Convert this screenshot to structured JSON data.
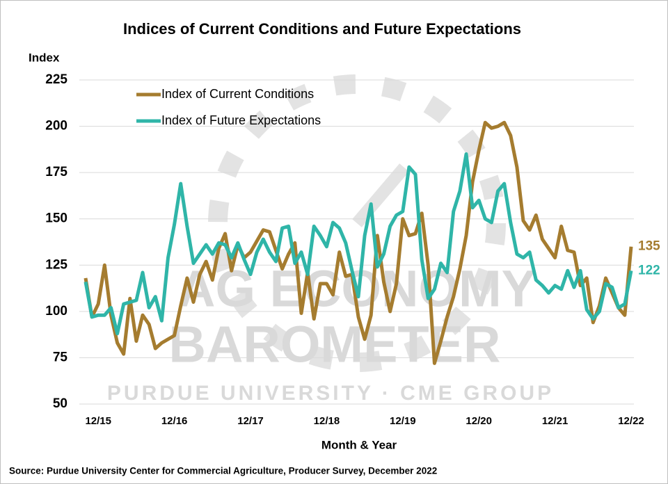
{
  "chart_data": {
    "type": "line",
    "title": "Indices of Current Conditions and Future Expectations",
    "y_label": "Index",
    "x_label": "Month & Year",
    "source": "Source: Purdue University Center for Commercial Agriculture, Producer Survey, December 2022",
    "watermark": [
      "AG ECONOMY",
      "BAROMETER",
      "PURDUE UNIVERSITY  ·  CME GROUP"
    ],
    "legend": "upper left",
    "grid": true,
    "ylim": [
      50,
      225
    ],
    "yticks": [
      50,
      75,
      100,
      125,
      150,
      175,
      200,
      225
    ],
    "categories": [
      null,
      null,
      "12/15",
      null,
      null,
      null,
      null,
      null,
      null,
      null,
      null,
      null,
      null,
      null,
      "12/16",
      null,
      null,
      null,
      null,
      null,
      null,
      null,
      null,
      null,
      null,
      null,
      "12/17",
      null,
      null,
      null,
      null,
      null,
      null,
      null,
      null,
      null,
      null,
      null,
      "12/18",
      null,
      null,
      null,
      null,
      null,
      null,
      null,
      null,
      null,
      null,
      null,
      "12/19",
      null,
      null,
      null,
      null,
      null,
      null,
      null,
      null,
      null,
      null,
      null,
      "12/20",
      null,
      null,
      null,
      null,
      null,
      null,
      null,
      null,
      null,
      null,
      null,
      "12/21",
      null,
      null,
      null,
      null,
      null,
      null,
      null,
      null,
      null,
      null,
      null,
      "12/22"
    ],
    "series": [
      {
        "name": "Index of Current Conditions",
        "color": "#a57c2f",
        "values": [
          118,
          97,
          104,
          125,
          98,
          83,
          77,
          107,
          84,
          98,
          93,
          80,
          83,
          85,
          87,
          103,
          118,
          105,
          120,
          127,
          117,
          134,
          142,
          122,
          136,
          129,
          132,
          138,
          144,
          143,
          133,
          123,
          131,
          137,
          99,
          121,
          96,
          115,
          115,
          109,
          132,
          119,
          120,
          97,
          85,
          98,
          141,
          116,
          100,
          115,
          150,
          141,
          142,
          153,
          125,
          72,
          84,
          97,
          108,
          123,
          141,
          170,
          187,
          202,
          199,
          200,
          202,
          195,
          178,
          149,
          144,
          152,
          139,
          134,
          129,
          146,
          133,
          132,
          114,
          118,
          94,
          103,
          118,
          110,
          102,
          98,
          135
        ]
      },
      {
        "name": "Index of Future Expectations",
        "color": "#2fb5a8",
        "values": [
          116,
          97,
          98,
          98,
          102,
          88,
          104,
          105,
          106,
          121,
          102,
          108,
          95,
          129,
          147,
          169,
          146,
          126,
          131,
          136,
          131,
          137,
          136,
          129,
          137,
          128,
          120,
          132,
          139,
          132,
          127,
          145,
          146,
          126,
          132,
          120,
          146,
          141,
          135,
          148,
          145,
          137,
          122,
          108,
          141,
          158,
          124,
          131,
          146,
          152,
          154,
          178,
          174,
          128,
          107,
          112,
          126,
          121,
          154,
          165,
          185,
          156,
          160,
          150,
          148,
          165,
          169,
          148,
          131,
          129,
          132,
          117,
          114,
          110,
          114,
          112,
          122,
          113,
          122,
          101,
          96,
          100,
          115,
          113,
          102,
          104,
          122
        ]
      }
    ]
  }
}
